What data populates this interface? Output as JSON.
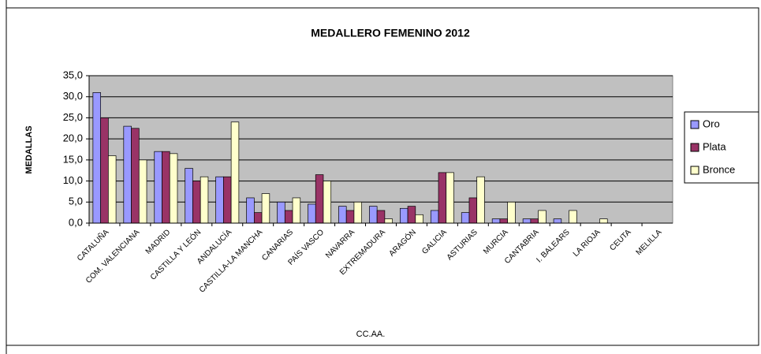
{
  "chart_data": {
    "type": "bar",
    "title": "MEDALLERO FEMENINO 2012",
    "x_label": "CC.AA.",
    "y_label": "MEDALLAS",
    "categories": [
      "CATALUÑA",
      "COM. VALENCIANA",
      "MADRID",
      "CASTILLA Y LEÓN",
      "ANDALUCÍA",
      "CASTILLA-LA MANCHA",
      "CANARIAS",
      "PAÍS VASCO",
      "NAVARRA",
      "EXTREMADURA",
      "ARAGÓN",
      "GALICIA",
      "ASTURIAS",
      "MURCIA",
      "CANTABRIA",
      "I. BALEARS",
      "LA RIOJA",
      "CEUTA",
      "MELILLA"
    ],
    "series": [
      {
        "name": "Oro",
        "color": "#9999ff",
        "values": [
          31,
          23,
          17,
          13,
          11,
          6,
          5,
          4.5,
          4,
          4,
          3.5,
          3,
          2.5,
          1,
          1,
          1,
          0,
          0,
          0
        ]
      },
      {
        "name": "Plata",
        "color": "#993366",
        "values": [
          25,
          22.5,
          17,
          10,
          11,
          2.5,
          3,
          11.5,
          3,
          3,
          4,
          12,
          6,
          1,
          1,
          0,
          0,
          0,
          0
        ]
      },
      {
        "name": "Bronce",
        "color": "#ffffcc",
        "values": [
          16,
          15,
          16.5,
          11,
          24,
          7,
          6,
          10,
          5,
          1,
          2,
          12,
          11,
          5,
          3,
          3,
          1,
          0,
          0
        ]
      }
    ],
    "ylim": [
      0,
      35
    ],
    "yticks": [
      {
        "value": 0,
        "label": "0,0"
      },
      {
        "value": 5,
        "label": "5,0"
      },
      {
        "value": 10,
        "label": "10,0"
      },
      {
        "value": 15,
        "label": "15,0"
      },
      {
        "value": 20,
        "label": "20,0"
      },
      {
        "value": 25,
        "label": "25,0"
      },
      {
        "value": 30,
        "label": "30,0"
      },
      {
        "value": 35,
        "label": "35,0"
      }
    ],
    "grid": true,
    "plot_background": "#c0c0c0",
    "legend": "right"
  }
}
